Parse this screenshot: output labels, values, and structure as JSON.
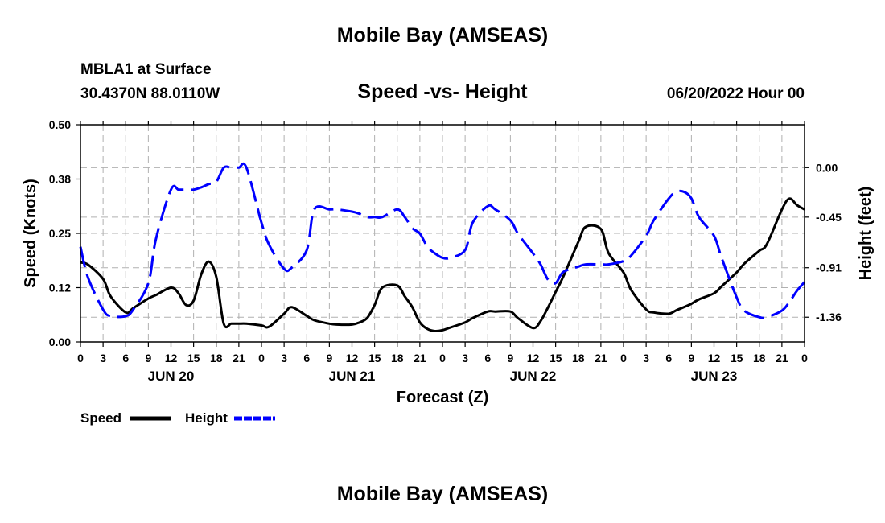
{
  "header": {
    "title": "Mobile Bay (AMSEAS)",
    "station": "MBLA1 at Surface",
    "coords": "30.4370N  88.0110W",
    "subtitle": "Speed -vs- Height",
    "datetime": "06/20/2022 Hour 00"
  },
  "footer": {
    "title": "Mobile Bay (AMSEAS)"
  },
  "chart_data": {
    "type": "line",
    "title": "Speed -vs- Height",
    "xlabel": "Forecast (Z)",
    "ylabel": "Speed (Knots)",
    "y2label": "Height (feet)",
    "x_tick_labels": [
      "0",
      "3",
      "6",
      "9",
      "12",
      "15",
      "18",
      "21",
      "0",
      "3",
      "6",
      "9",
      "12",
      "15",
      "18",
      "21",
      "0",
      "3",
      "6",
      "9",
      "12",
      "15",
      "18",
      "21",
      "0",
      "3",
      "6",
      "9",
      "12",
      "15",
      "18",
      "21",
      "0"
    ],
    "day_labels": [
      {
        "label": "JUN 20",
        "hour": 12
      },
      {
        "label": "JUN 21",
        "hour": 36
      },
      {
        "label": "JUN 22",
        "hour": 60
      },
      {
        "label": "JUN 23",
        "hour": 84
      }
    ],
    "xlim": [
      0,
      96
    ],
    "ylim": [
      0,
      0.5
    ],
    "y_ticks": [
      "0.00",
      "0.12",
      "0.25",
      "0.38",
      "0.50"
    ],
    "y_tick_values": [
      0,
      0.125,
      0.25,
      0.375,
      0.5
    ],
    "y2lim": [
      -1.585,
      0.39
    ],
    "y2_ticks": [
      "-1.36",
      "-0.91",
      "-0.45",
      "0.00"
    ],
    "y2_tick_values": [
      -1.36,
      -0.91,
      -0.45,
      0.0
    ],
    "grid": true,
    "legend_position": "bottom-left",
    "series": [
      {
        "name": "Speed",
        "color": "#000000",
        "axis": "left",
        "x": [
          0,
          1,
          3,
          4,
          6,
          7,
          9,
          10,
          12,
          13,
          14,
          15,
          16,
          17,
          18,
          19,
          20,
          21,
          22,
          24,
          25,
          27,
          28,
          30,
          31,
          33,
          34,
          36,
          37,
          38,
          39,
          40,
          42,
          43,
          44,
          45,
          46,
          47,
          48,
          49,
          51,
          52,
          54,
          55,
          57,
          58,
          60,
          61,
          62,
          63,
          64,
          66,
          67,
          69,
          70,
          72,
          73,
          75,
          76,
          78,
          79,
          80,
          81,
          82,
          84,
          85,
          87,
          88,
          90,
          91,
          93,
          94,
          95,
          96
        ],
        "y": [
          0.183,
          0.178,
          0.145,
          0.105,
          0.068,
          0.078,
          0.1,
          0.108,
          0.125,
          0.112,
          0.085,
          0.095,
          0.155,
          0.185,
          0.15,
          0.042,
          0.042,
          0.042,
          0.042,
          0.038,
          0.035,
          0.065,
          0.08,
          0.06,
          0.05,
          0.042,
          0.04,
          0.04,
          0.045,
          0.055,
          0.085,
          0.125,
          0.13,
          0.105,
          0.08,
          0.045,
          0.03,
          0.025,
          0.027,
          0.033,
          0.045,
          0.055,
          0.07,
          0.07,
          0.07,
          0.055,
          0.032,
          0.048,
          0.08,
          0.115,
          0.15,
          0.23,
          0.265,
          0.26,
          0.205,
          0.16,
          0.12,
          0.075,
          0.068,
          0.065,
          0.073,
          0.08,
          0.088,
          0.098,
          0.112,
          0.128,
          0.16,
          0.18,
          0.21,
          0.225,
          0.305,
          0.33,
          0.315,
          0.305
        ]
      },
      {
        "name": "Height",
        "color": "#0000ff",
        "axis": "right",
        "x": [
          0,
          1,
          3,
          4,
          6,
          7,
          9,
          10,
          12,
          13,
          14,
          15,
          16,
          17,
          18,
          19,
          20,
          21,
          22,
          24,
          25,
          27,
          28,
          30,
          31,
          33,
          34,
          36,
          37,
          38,
          39,
          40,
          42,
          43,
          44,
          45,
          46,
          47,
          48,
          49,
          51,
          52,
          54,
          55,
          57,
          58,
          60,
          61,
          62,
          63,
          64,
          66,
          67,
          69,
          70,
          72,
          73,
          75,
          76,
          78,
          79,
          80,
          81,
          82,
          84,
          85,
          87,
          88,
          90,
          91,
          93,
          94,
          95,
          96
        ],
        "y": [
          -0.72,
          -1.0,
          -1.29,
          -1.35,
          -1.35,
          -1.29,
          -1.05,
          -0.65,
          -0.2,
          -0.2,
          -0.2,
          -0.2,
          -0.18,
          -0.15,
          -0.13,
          0.0,
          0.0,
          0.0,
          0.0,
          -0.5,
          -0.7,
          -0.92,
          -0.91,
          -0.75,
          -0.38,
          -0.38,
          -0.38,
          -0.4,
          -0.42,
          -0.45,
          -0.45,
          -0.45,
          -0.38,
          -0.45,
          -0.55,
          -0.6,
          -0.72,
          -0.78,
          -0.82,
          -0.82,
          -0.75,
          -0.5,
          -0.35,
          -0.38,
          -0.48,
          -0.6,
          -0.78,
          -0.88,
          -1.02,
          -1.05,
          -0.95,
          -0.9,
          -0.88,
          -0.88,
          -0.88,
          -0.85,
          -0.8,
          -0.62,
          -0.48,
          -0.28,
          -0.22,
          -0.22,
          -0.28,
          -0.45,
          -0.62,
          -0.82,
          -1.18,
          -1.3,
          -1.36,
          -1.36,
          -1.3,
          -1.22,
          -1.12,
          -1.04
        ]
      }
    ]
  },
  "legend": {
    "items": [
      {
        "label": "Speed",
        "color": "#000000"
      },
      {
        "label": "Height",
        "color": "#0000ff"
      }
    ]
  }
}
